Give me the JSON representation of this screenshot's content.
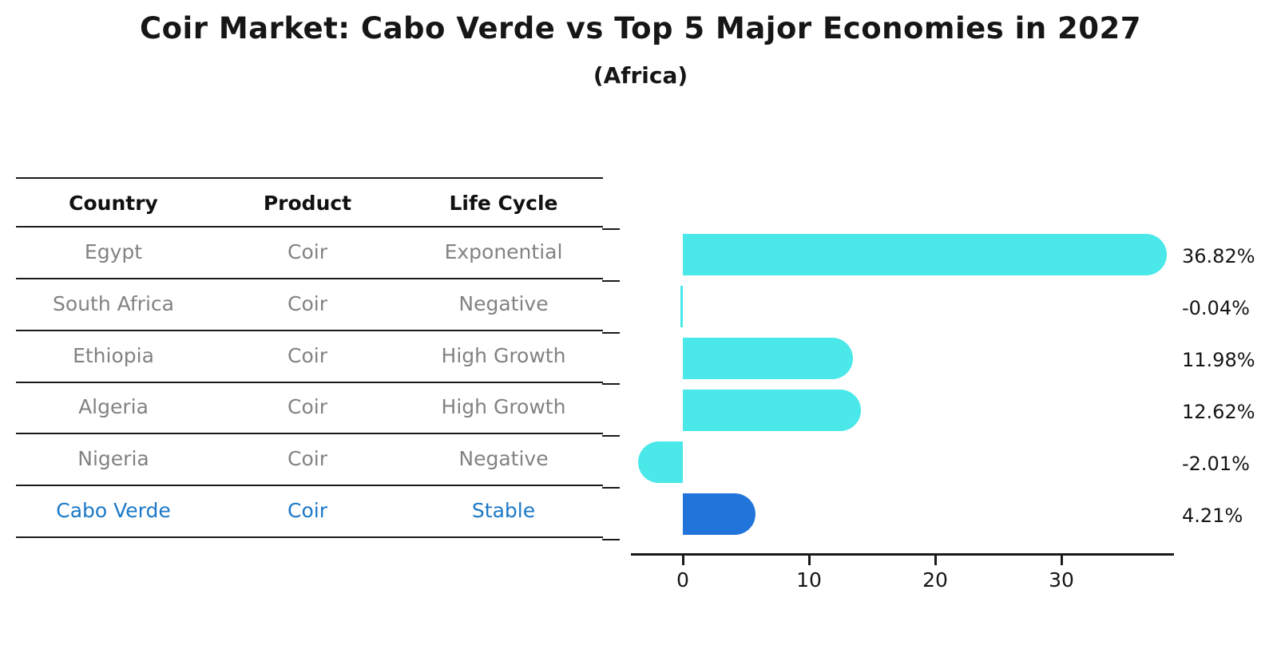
{
  "title": "Coir Market: Cabo Verde vs Top 5 Major Economies in 2027",
  "subtitle": "(Africa)",
  "table": {
    "columns": [
      "Country",
      "Product",
      "Life Cycle"
    ],
    "rows": [
      {
        "country": "Egypt",
        "product": "Coir",
        "life_cycle": "Exponential",
        "highlight": false
      },
      {
        "country": "South Africa",
        "product": "Coir",
        "life_cycle": "Negative",
        "highlight": false
      },
      {
        "country": "Ethiopia",
        "product": "Coir",
        "life_cycle": "High Growth",
        "highlight": false
      },
      {
        "country": "Algeria",
        "product": "Coir",
        "life_cycle": "High Growth",
        "highlight": false
      },
      {
        "country": "Nigeria",
        "product": "Coir",
        "life_cycle": "Negative",
        "highlight": false
      },
      {
        "country": "Cabo Verde",
        "product": "Coir",
        "life_cycle": "Stable",
        "highlight": true
      }
    ]
  },
  "chart_data": {
    "type": "bar",
    "orientation": "horizontal",
    "categories": [
      "Egypt",
      "South Africa",
      "Ethiopia",
      "Algeria",
      "Nigeria",
      "Cabo Verde"
    ],
    "values": [
      36.82,
      -0.04,
      11.98,
      12.62,
      -2.01,
      4.21
    ],
    "value_labels": [
      "36.82%",
      "-0.04%",
      "11.98%",
      "12.62%",
      "-2.01%",
      "4.21%"
    ],
    "x_ticks": [
      0,
      10,
      20,
      30
    ],
    "xlim": [
      -4.1,
      38.9
    ],
    "grid": false,
    "legend": null,
    "highlight_index": 5,
    "title": "Coir Market: Cabo Verde vs Top 5 Major Economies in 2027",
    "subtitle": "(Africa)",
    "xlabel": "",
    "ylabel": ""
  },
  "colors": {
    "bar": "#4AE8E8",
    "highlight_bar": "#2174DA",
    "highlight_text": "#1B79C7",
    "table_text": "#828282",
    "header_text": "#111111",
    "axis": "#1a1a1a",
    "label_text": "#151515"
  }
}
